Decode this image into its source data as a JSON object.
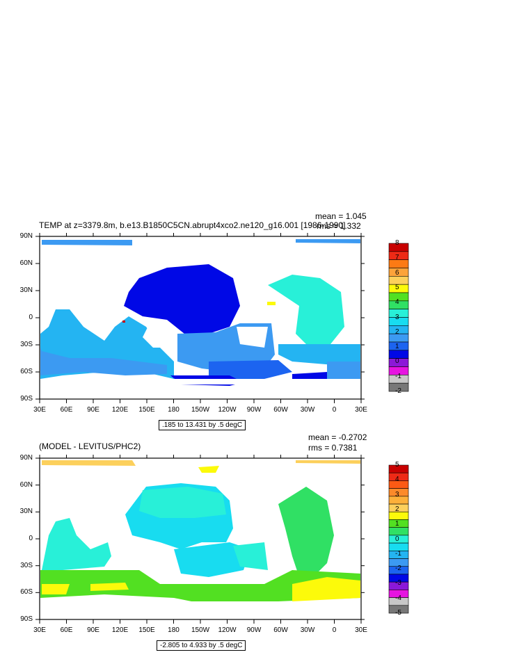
{
  "panels": [
    {
      "title": "TEMP at z=3379.8m, b.e13.B1850C5CN.abrupt4xco2.ne120_g16.001 [1986-1990]",
      "mean": "mean = 1.045",
      "rms": "rms = 1.332",
      "range": ".185 to 13.431 by .5 degC",
      "lat_ticks": [
        "90N",
        "60N",
        "30N",
        "0",
        "30S",
        "60S",
        "90S"
      ],
      "lon_ticks": [
        "30E",
        "60E",
        "90E",
        "120E",
        "150E",
        "180",
        "150W",
        "120W",
        "90W",
        "60W",
        "30W",
        "0",
        "30E"
      ],
      "labelbar": {
        "labels": [
          "8",
          "7",
          "6",
          "5",
          "4",
          "3",
          "2",
          "1",
          "0",
          "-1",
          "-2"
        ],
        "colors": [
          "#c80000",
          "#ee2a16",
          "#fc7a14",
          "#fca33a",
          "#fcd05c",
          "#fcfa0a",
          "#52e022",
          "#30e064",
          "#28f0d8",
          "#18dcf0",
          "#24b4f2",
          "#3c9af2",
          "#1c64f0",
          "#0008e6",
          "#8c18d8",
          "#e614e0",
          "#c8c8c8",
          "#787878"
        ]
      }
    },
    {
      "title": "(MODEL - LEVITUS/PHC2)",
      "mean": "mean = -0.2702",
      "rms": "rms = 0.7381",
      "range": "-2.805 to 4.933 by .5 degC",
      "lat_ticks": [
        "90N",
        "60N",
        "30N",
        "0",
        "30S",
        "60S",
        "90S"
      ],
      "lon_ticks": [
        "30E",
        "60E",
        "90E",
        "120E",
        "150E",
        "180",
        "150W",
        "120W",
        "90W",
        "60W",
        "30W",
        "0",
        "30E"
      ],
      "labelbar": {
        "labels": [
          "5",
          "4",
          "3",
          "2",
          "1",
          "0",
          "-1",
          "-2",
          "-3",
          "-4",
          "-5"
        ],
        "colors": [
          "#c80000",
          "#ee2a16",
          "#fc5a14",
          "#fc8a2a",
          "#fcb03a",
          "#fcd05c",
          "#fcfa0a",
          "#52e022",
          "#30e064",
          "#28f0d8",
          "#18dcf0",
          "#24b4f2",
          "#3c9af2",
          "#1c64f0",
          "#0008e6",
          "#8c18d8",
          "#e614e0",
          "#c8c8c8",
          "#787878"
        ]
      }
    }
  ]
}
